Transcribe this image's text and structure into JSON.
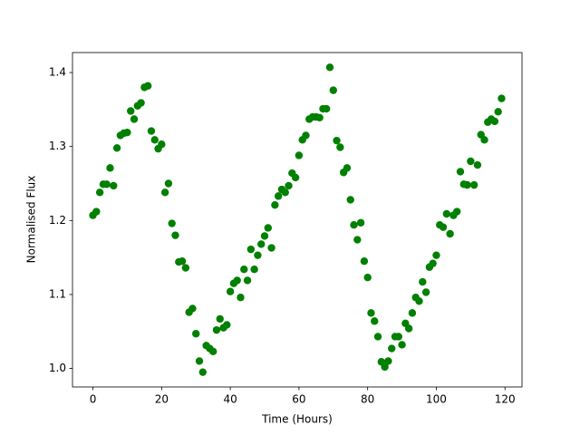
{
  "chart_data": {
    "type": "scatter",
    "xlabel": "Time (Hours)",
    "ylabel": "Normalised Flux",
    "x": [
      0,
      1,
      2,
      3,
      4,
      5,
      6,
      7,
      8,
      9,
      10,
      11,
      12,
      13,
      14,
      15,
      16,
      17,
      18,
      19,
      20,
      21,
      22,
      23,
      24,
      25,
      26,
      27,
      28,
      29,
      30,
      31,
      32,
      33,
      34,
      35,
      36,
      37,
      38,
      39,
      40,
      41,
      42,
      43,
      44,
      45,
      46,
      47,
      48,
      49,
      50,
      51,
      52,
      53,
      54,
      55,
      56,
      57,
      58,
      59,
      60,
      61,
      62,
      63,
      64,
      65,
      66,
      67,
      68,
      69,
      70,
      71,
      72,
      73,
      74,
      75,
      76,
      77,
      78,
      79,
      80,
      81,
      82,
      83,
      84,
      85,
      86,
      87,
      88,
      89,
      90,
      91,
      92,
      93,
      94,
      95,
      96,
      97,
      98,
      99,
      100,
      101,
      102,
      103,
      104,
      105,
      106,
      107,
      108,
      109,
      110,
      111,
      112,
      113,
      114,
      115,
      116,
      117,
      118,
      119
    ],
    "series": [
      {
        "color": "#008000",
        "values": [
          1.207,
          1.212,
          1.238,
          1.249,
          1.249,
          1.271,
          1.247,
          1.298,
          1.315,
          1.318,
          1.319,
          1.348,
          1.337,
          1.355,
          1.359,
          1.38,
          1.382,
          1.321,
          1.309,
          1.297,
          1.303,
          1.238,
          1.25,
          1.196,
          1.18,
          1.144,
          1.145,
          1.136,
          1.076,
          1.081,
          1.047,
          1.01,
          0.995,
          1.031,
          1.027,
          1.023,
          1.052,
          1.067,
          1.055,
          1.059,
          1.104,
          1.115,
          1.119,
          1.096,
          1.134,
          1.119,
          1.161,
          1.134,
          1.153,
          1.168,
          1.179,
          1.19,
          1.163,
          1.221,
          1.233,
          1.242,
          1.238,
          1.247,
          1.264,
          1.258,
          1.288,
          1.309,
          1.315,
          1.337,
          1.34,
          1.34,
          1.339,
          1.351,
          1.351,
          1.407,
          1.376,
          1.308,
          1.299,
          1.265,
          1.271,
          1.228,
          1.194,
          1.174,
          1.197,
          1.145,
          1.123,
          1.075,
          1.064,
          1.043,
          1.009,
          1.002,
          1.01,
          1.027,
          1.043,
          1.043,
          1.032,
          1.061,
          1.054,
          1.075,
          1.096,
          1.091,
          1.117,
          1.103,
          1.137,
          1.142,
          1.153,
          1.194,
          1.191,
          1.209,
          1.182,
          1.207,
          1.212,
          1.266,
          1.249,
          1.248,
          1.28,
          1.248,
          1.275,
          1.316,
          1.309,
          1.333,
          1.337,
          1.334,
          1.347,
          1.365
        ]
      }
    ],
    "xlim": [
      -5.95,
      124.95
    ],
    "xticks": [
      0,
      20,
      40,
      60,
      80,
      100,
      120
    ],
    "ylim": [
      0.975,
      1.427
    ],
    "yticks": [
      {
        "value": 1,
        "label": "1.0"
      },
      1.1,
      1.2,
      1.3,
      1.4
    ],
    "grid": false
  }
}
